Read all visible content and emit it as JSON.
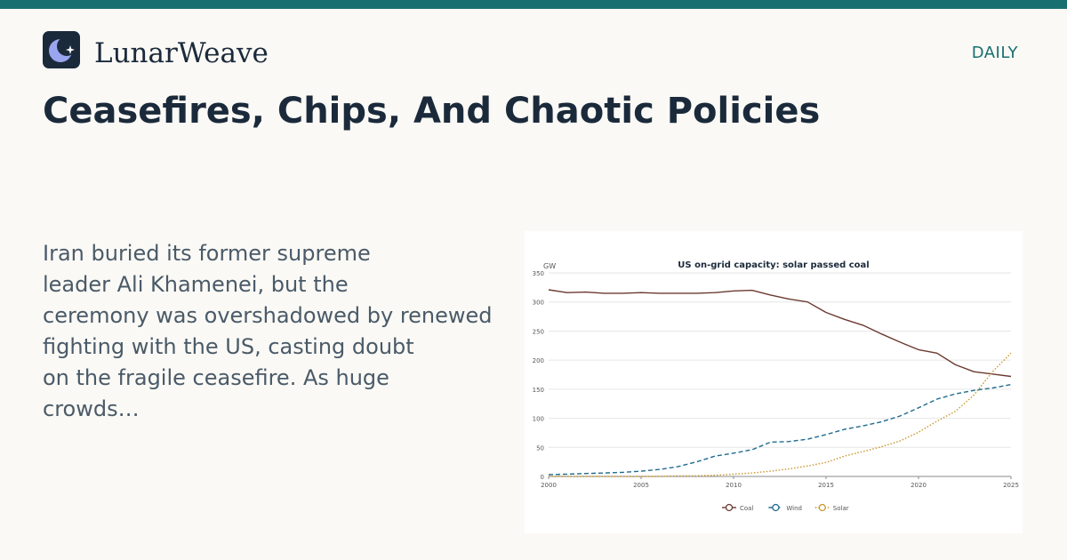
{
  "brand": {
    "name": "LunarWeave",
    "logo_icon": "moon-and-star-icon",
    "logo_bg": "#1b2a3b",
    "logo_moon": "#9aa5f0",
    "accent": "#17706f"
  },
  "section_label": "DAILY",
  "headline": "Ceasefires, Chips, And Chaotic Policies",
  "summary_lines": [
    "Iran buried its former supreme",
    "leader Ali Khamenei, but the",
    "ceremony was overshadowed by renewed",
    "fighting with the US, casting doubt",
    "on the fragile ceasefire. As huge",
    "crowds…"
  ],
  "chart_data": {
    "type": "line",
    "title": "US on-grid capacity: solar passed coal",
    "xlabel": "",
    "ylabel": "GW",
    "xlim": [
      2000,
      2025
    ],
    "ylim": [
      0,
      350
    ],
    "x_ticks": [
      2000,
      2005,
      2010,
      2015,
      2020,
      2025
    ],
    "y_ticks": [
      0,
      50,
      100,
      150,
      200,
      250,
      300,
      350
    ],
    "grid": true,
    "legend": "bottom-center",
    "x": [
      2000,
      2001,
      2002,
      2003,
      2004,
      2005,
      2006,
      2007,
      2008,
      2009,
      2010,
      2011,
      2012,
      2013,
      2014,
      2015,
      2016,
      2017,
      2018,
      2019,
      2020,
      2021,
      2022,
      2023,
      2024,
      2025
    ],
    "series": [
      {
        "name": "Coal",
        "color": "#6b3a2f",
        "style": "solid",
        "values": [
          321,
          316,
          317,
          315,
          315,
          316,
          315,
          315,
          315,
          316,
          319,
          320,
          312,
          305,
          300,
          282,
          270,
          260,
          245,
          231,
          218,
          212,
          192,
          180,
          176,
          172
        ]
      },
      {
        "name": "Wind",
        "color": "#1f6b8e",
        "style": "dashed",
        "values": [
          3,
          4,
          5,
          6,
          7,
          9,
          12,
          17,
          25,
          35,
          40,
          46,
          59,
          60,
          64,
          72,
          81,
          87,
          94,
          104,
          118,
          133,
          142,
          148,
          152,
          158
        ]
      },
      {
        "name": "Solar",
        "color": "#c9962a",
        "style": "dotted",
        "values": [
          0,
          0,
          0,
          0,
          0,
          0,
          0,
          1,
          1,
          2,
          4,
          6,
          9,
          13,
          18,
          24,
          35,
          43,
          51,
          61,
          76,
          95,
          112,
          140,
          180,
          212
        ]
      }
    ]
  }
}
